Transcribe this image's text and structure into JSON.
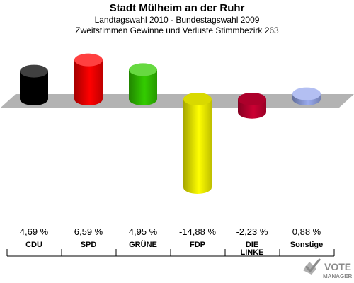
{
  "header": {
    "title": "Stadt Mülheim an der Ruhr",
    "subtitle1": "Landtagswahl 2010 - Bundestagswahl 2009",
    "subtitle2": "Zweitstimmen Gewinne und Verluste Stimmbezirk 263"
  },
  "chart_data": {
    "type": "bar",
    "title": "Stadt Mülheim an der Ruhr",
    "categories": [
      "CDU",
      "SPD",
      "GRÜNE",
      "FDP",
      "DIE LINKE",
      "Sonstige"
    ],
    "category_lines": [
      [
        "CDU"
      ],
      [
        "SPD"
      ],
      [
        "GRÜNE"
      ],
      [
        "FDP"
      ],
      [
        "DIE",
        "LINKE"
      ],
      [
        "Sonstige"
      ]
    ],
    "values": [
      4.69,
      6.59,
      4.95,
      -14.88,
      -2.23,
      0.88
    ],
    "value_labels": [
      "4,69 %",
      "6,59 %",
      "4,95 %",
      "-14,88 %",
      "-2,23 %",
      "0,88 %"
    ],
    "colors": [
      "#000000",
      "#ff0000",
      "#33cc00",
      "#ffff00",
      "#cc0033",
      "#99aaee"
    ],
    "xlabel": "",
    "ylabel": "",
    "ylim": [
      -15,
      7
    ],
    "grid": false,
    "legend": "none"
  },
  "watermark": {
    "line1": "VOTE",
    "line2": "MANAGER"
  }
}
